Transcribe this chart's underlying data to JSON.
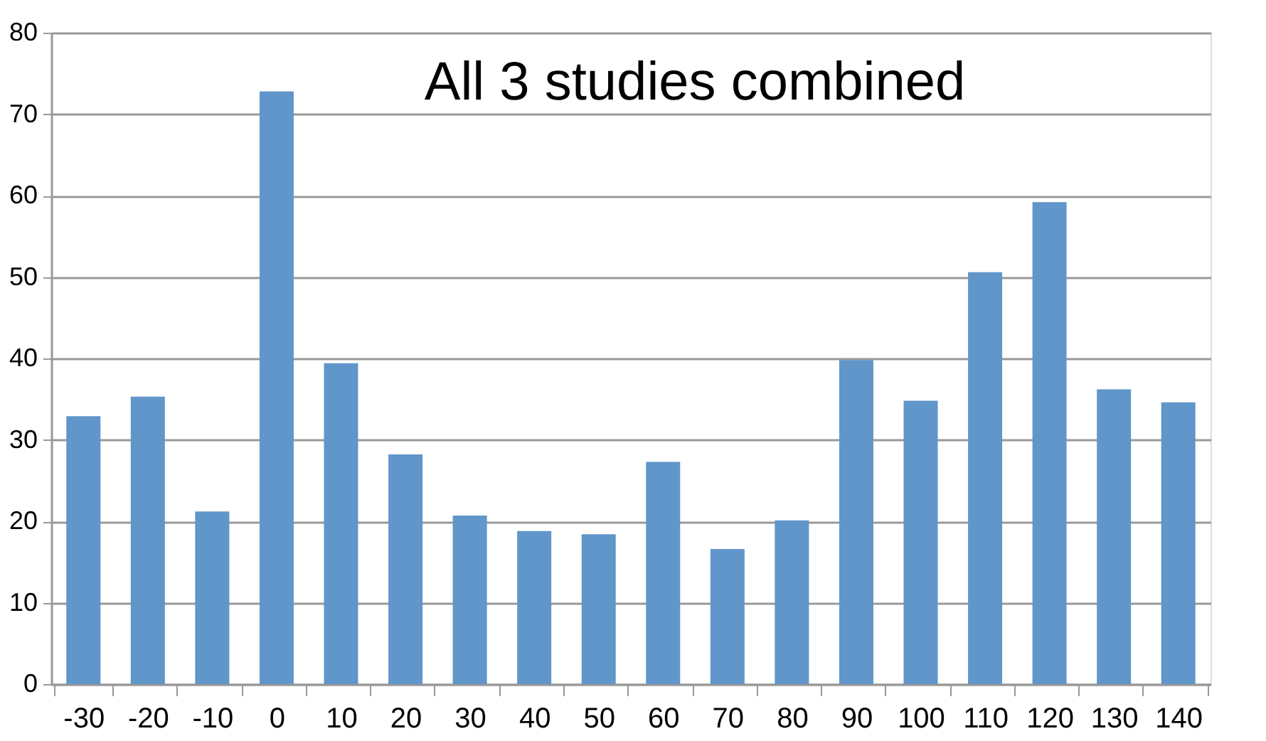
{
  "chart_data": {
    "type": "bar",
    "title": "All 3 studies combined",
    "categories": [
      "-30",
      "-20",
      "-10",
      "0",
      "10",
      "20",
      "30",
      "40",
      "50",
      "60",
      "70",
      "80",
      "90",
      "100",
      "110",
      "120",
      "130",
      "140"
    ],
    "values": [
      32.9,
      35.3,
      21.2,
      72.8,
      39.4,
      28.2,
      20.7,
      18.8,
      18.4,
      27.3,
      16.6,
      20.1,
      39.8,
      34.8,
      50.6,
      59.2,
      36.2,
      34.6
    ],
    "color": "#6096c9",
    "ylim": [
      0,
      80
    ],
    "yticks": [
      0,
      10,
      20,
      30,
      40,
      50,
      60,
      70,
      80
    ],
    "grid": "y"
  }
}
